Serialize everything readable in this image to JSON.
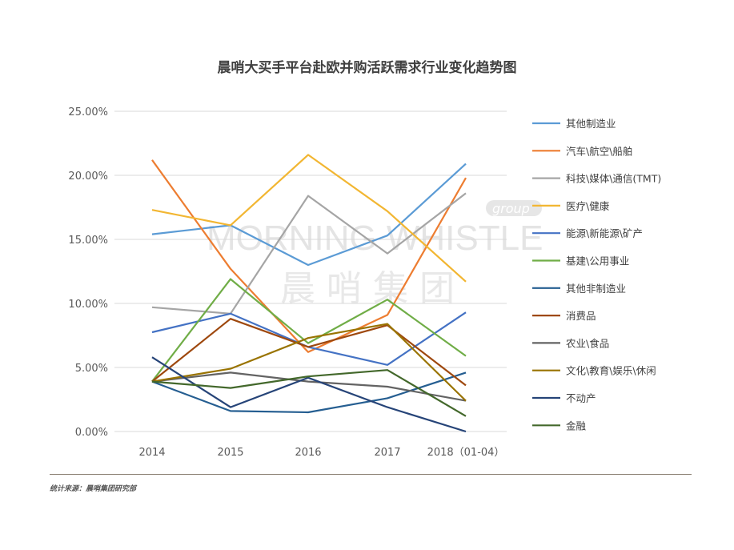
{
  "chart_data": {
    "type": "line",
    "title": "晨哨大买手平台赴欧并购活跃需求行业变化趋势图",
    "categories": [
      "2014",
      "2015",
      "2016",
      "2017",
      "2018（01-04）"
    ],
    "ylim": [
      0,
      25
    ],
    "yticks": [
      "0.00%",
      "5.00%",
      "10.00%",
      "15.00%",
      "20.00%",
      "25.00%"
    ],
    "grid": true,
    "legend_position": "right",
    "series": [
      {
        "name": "其他制造业",
        "color": "#5b9bd5",
        "values": [
          15.4,
          16.1,
          13.0,
          15.3,
          20.9
        ]
      },
      {
        "name": "汽车\\航空\\船舶",
        "color": "#ed7d31",
        "values": [
          21.2,
          12.7,
          6.2,
          9.1,
          19.8
        ]
      },
      {
        "name": "科技\\媒体\\通信(TMT)",
        "color": "#a5a5a5",
        "values": [
          9.7,
          9.2,
          18.4,
          13.9,
          18.6
        ]
      },
      {
        "name": "医疗\\健康",
        "color": "#f2b632",
        "values": [
          17.3,
          16.1,
          21.6,
          17.2,
          11.7
        ]
      },
      {
        "name": "能源\\新能源\\矿产",
        "color": "#4472c4",
        "values": [
          7.75,
          9.2,
          6.6,
          5.2,
          9.3
        ]
      },
      {
        "name": "基建\\公用事业",
        "color": "#70ad47",
        "values": [
          3.9,
          11.9,
          6.9,
          10.3,
          5.9
        ]
      },
      {
        "name": "其他非制造业",
        "color": "#255e91",
        "values": [
          3.9,
          1.6,
          1.5,
          2.6,
          4.6
        ]
      },
      {
        "name": "消费品",
        "color": "#9e480e",
        "values": [
          3.9,
          8.8,
          6.6,
          8.3,
          3.6
        ]
      },
      {
        "name": "农业\\食品",
        "color": "#636363",
        "values": [
          3.9,
          4.6,
          3.9,
          3.5,
          2.4
        ]
      },
      {
        "name": "文化\\教育\\娱乐\\休闲",
        "color": "#997300",
        "values": [
          3.9,
          4.9,
          7.3,
          8.4,
          2.4
        ]
      },
      {
        "name": "不动产",
        "color": "#264478",
        "values": [
          5.8,
          1.9,
          4.2,
          1.9,
          0.0
        ]
      },
      {
        "name": "金融",
        "color": "#43682b",
        "values": [
          3.9,
          3.4,
          4.3,
          4.8,
          1.2
        ]
      }
    ]
  },
  "watermark": {
    "text_en": "MORNING WHISTLE",
    "text_cn": "晨哨集团",
    "tag": "group"
  },
  "source": "统计来源：晨哨集团研究部"
}
